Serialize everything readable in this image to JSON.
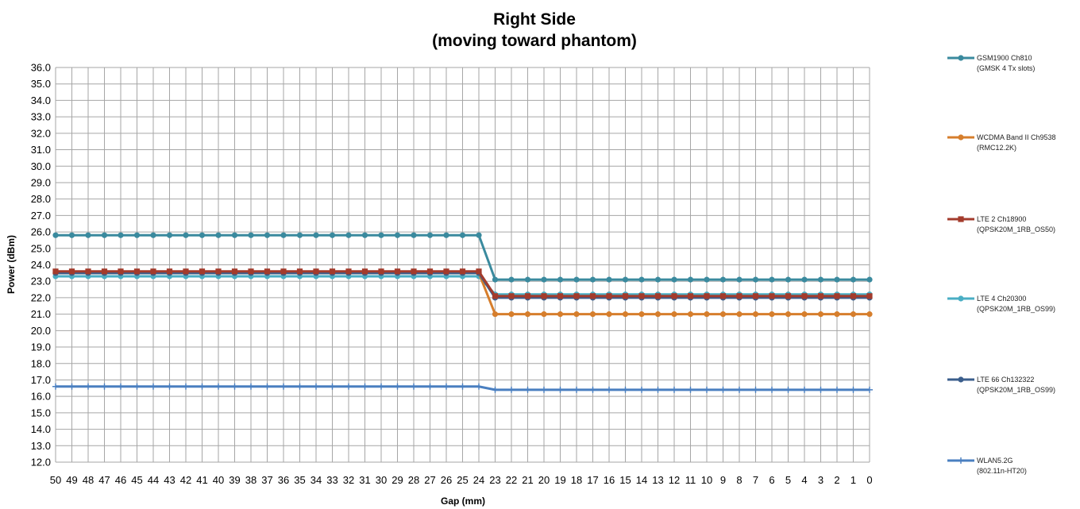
{
  "chart_data": {
    "type": "line",
    "title_lines": [
      "Right Side",
      "(moving toward phantom)"
    ],
    "xlabel": "Gap (mm)",
    "ylabel": "Power (dBm)",
    "ylim": [
      12.0,
      36.0
    ],
    "ytick_step": 1.0,
    "grid": true,
    "legend_placement": "right",
    "x": [
      50,
      49,
      48,
      47,
      46,
      45,
      44,
      43,
      42,
      41,
      40,
      39,
      38,
      37,
      36,
      35,
      34,
      33,
      32,
      31,
      30,
      29,
      28,
      27,
      26,
      25,
      24,
      23,
      22,
      21,
      20,
      19,
      18,
      17,
      16,
      15,
      14,
      13,
      12,
      11,
      10,
      9,
      8,
      7,
      6,
      5,
      4,
      3,
      2,
      1,
      0
    ],
    "series": [
      {
        "name_line1": "GSM1900  Ch810",
        "name_line2": "(GMSK 4 Tx slots)",
        "color": "#3a8a9e",
        "marker": "circle",
        "values": [
          25.8,
          25.8,
          25.8,
          25.8,
          25.8,
          25.8,
          25.8,
          25.8,
          25.8,
          25.8,
          25.8,
          25.8,
          25.8,
          25.8,
          25.8,
          25.8,
          25.8,
          25.8,
          25.8,
          25.8,
          25.8,
          25.8,
          25.8,
          25.8,
          25.8,
          25.8,
          25.8,
          23.1,
          23.1,
          23.1,
          23.1,
          23.1,
          23.1,
          23.1,
          23.1,
          23.1,
          23.1,
          23.1,
          23.1,
          23.1,
          23.1,
          23.1,
          23.1,
          23.1,
          23.1,
          23.1,
          23.1,
          23.1,
          23.1,
          23.1,
          23.1
        ]
      },
      {
        "name_line1": "WCDMA Band II Ch9538",
        "name_line2": "(RMC12.2K)",
        "color": "#d67e2c",
        "marker": "circle",
        "values": [
          23.5,
          23.5,
          23.5,
          23.5,
          23.5,
          23.5,
          23.5,
          23.5,
          23.5,
          23.5,
          23.5,
          23.5,
          23.5,
          23.5,
          23.5,
          23.5,
          23.5,
          23.5,
          23.5,
          23.5,
          23.5,
          23.5,
          23.5,
          23.5,
          23.5,
          23.5,
          23.5,
          21.0,
          21.0,
          21.0,
          21.0,
          21.0,
          21.0,
          21.0,
          21.0,
          21.0,
          21.0,
          21.0,
          21.0,
          21.0,
          21.0,
          21.0,
          21.0,
          21.0,
          21.0,
          21.0,
          21.0,
          21.0,
          21.0,
          21.0,
          21.0
        ]
      },
      {
        "name_line1": "LTE 2 Ch18900",
        "name_line2": "(QPSK20M_1RB_OS50)",
        "color": "#a33b2c",
        "marker": "square",
        "values": [
          23.6,
          23.6,
          23.6,
          23.6,
          23.6,
          23.6,
          23.6,
          23.6,
          23.6,
          23.6,
          23.6,
          23.6,
          23.6,
          23.6,
          23.6,
          23.6,
          23.6,
          23.6,
          23.6,
          23.6,
          23.6,
          23.6,
          23.6,
          23.6,
          23.6,
          23.6,
          23.6,
          22.1,
          22.1,
          22.1,
          22.1,
          22.1,
          22.1,
          22.1,
          22.1,
          22.1,
          22.1,
          22.1,
          22.1,
          22.1,
          22.1,
          22.1,
          22.1,
          22.1,
          22.1,
          22.1,
          22.1,
          22.1,
          22.1,
          22.1,
          22.1
        ]
      },
      {
        "name_line1": "LTE 4 Ch20300",
        "name_line2": "(QPSK20M_1RB_OS99)",
        "color": "#4aaec4",
        "marker": "circle",
        "values": [
          23.3,
          23.3,
          23.3,
          23.3,
          23.3,
          23.3,
          23.3,
          23.3,
          23.3,
          23.3,
          23.3,
          23.3,
          23.3,
          23.3,
          23.3,
          23.3,
          23.3,
          23.3,
          23.3,
          23.3,
          23.3,
          23.3,
          23.3,
          23.3,
          23.3,
          23.3,
          23.3,
          22.2,
          22.2,
          22.2,
          22.2,
          22.2,
          22.2,
          22.2,
          22.2,
          22.2,
          22.2,
          22.2,
          22.2,
          22.2,
          22.2,
          22.2,
          22.2,
          22.2,
          22.2,
          22.2,
          22.2,
          22.2,
          22.2,
          22.2,
          22.2
        ]
      },
      {
        "name_line1": "LTE 66 Ch132322",
        "name_line2": "(QPSK20M_1RB_OS99)",
        "color": "#3b5e8c",
        "marker": "circle",
        "values": [
          23.5,
          23.5,
          23.5,
          23.5,
          23.5,
          23.5,
          23.5,
          23.5,
          23.5,
          23.5,
          23.5,
          23.5,
          23.5,
          23.5,
          23.5,
          23.5,
          23.5,
          23.5,
          23.5,
          23.5,
          23.5,
          23.5,
          23.5,
          23.5,
          23.5,
          23.5,
          23.5,
          22.0,
          22.0,
          22.0,
          22.0,
          22.0,
          22.0,
          22.0,
          22.0,
          22.0,
          22.0,
          22.0,
          22.0,
          22.0,
          22.0,
          22.0,
          22.0,
          22.0,
          22.0,
          22.0,
          22.0,
          22.0,
          22.0,
          22.0,
          22.0
        ]
      },
      {
        "name_line1": "WLAN5.2G",
        "name_line2": "(802.11n-HT20)",
        "color": "#4a7fc0",
        "marker": "plus",
        "values": [
          16.6,
          16.6,
          16.6,
          16.6,
          16.6,
          16.6,
          16.6,
          16.6,
          16.6,
          16.6,
          16.6,
          16.6,
          16.6,
          16.6,
          16.6,
          16.6,
          16.6,
          16.6,
          16.6,
          16.6,
          16.6,
          16.6,
          16.6,
          16.6,
          16.6,
          16.6,
          16.6,
          16.4,
          16.4,
          16.4,
          16.4,
          16.4,
          16.4,
          16.4,
          16.4,
          16.4,
          16.4,
          16.4,
          16.4,
          16.4,
          16.4,
          16.4,
          16.4,
          16.4,
          16.4,
          16.4,
          16.4,
          16.4,
          16.4,
          16.4,
          16.4
        ]
      }
    ]
  }
}
